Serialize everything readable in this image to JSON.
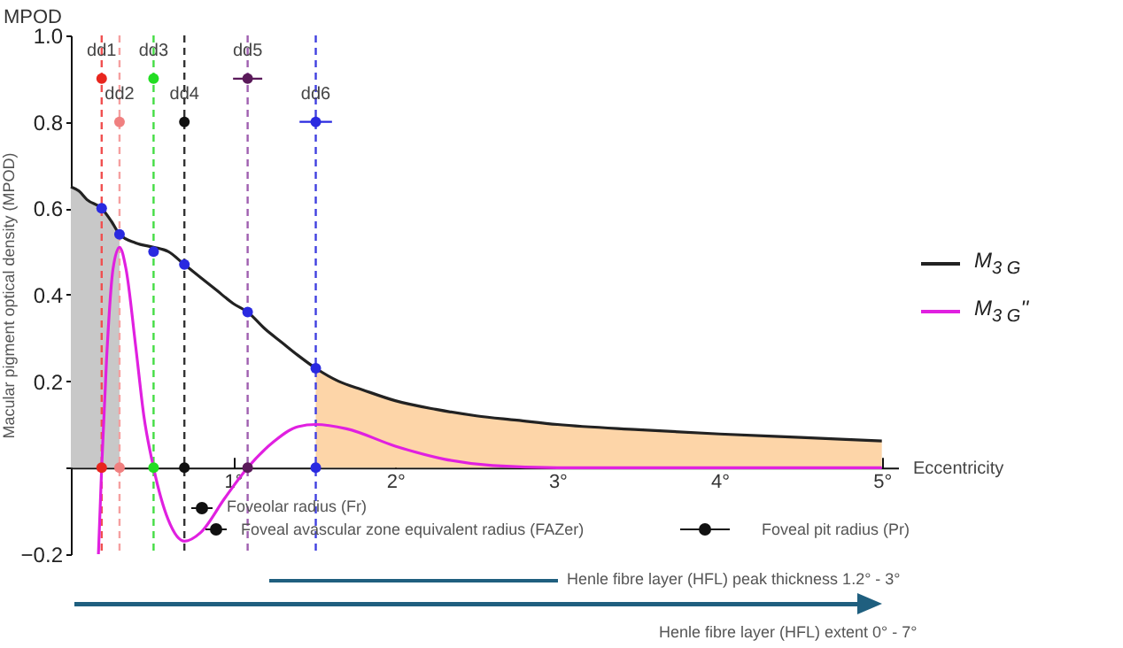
{
  "chart_data": {
    "type": "line",
    "xlabel": "Eccentricity",
    "ylabel": "Macular pigment optical density (MPOD)",
    "xlim": [
      0,
      5.1
    ],
    "ylim": [
      -0.2,
      1.0
    ],
    "xticks": [
      {
        "value": 1,
        "label": "1°"
      },
      {
        "value": 2,
        "label": "2°"
      },
      {
        "value": 3,
        "label": "3°"
      },
      {
        "value": 4,
        "label": "4°"
      },
      {
        "value": 5,
        "label": "5°"
      }
    ],
    "yticks": [
      {
        "value": -0.2,
        "label": "−0.2"
      },
      {
        "value": 0,
        "label": null
      },
      0.2,
      0.4,
      0.6,
      0.8,
      {
        "value": 1,
        "label": "1.0"
      }
    ],
    "grid": false,
    "legend": "right",
    "series": [
      {
        "type": "area",
        "color": "#c8c8c8",
        "x": [
          0,
          0.05,
          0.1,
          0.19,
          0.25,
          0.3
        ],
        "values": [
          0.65,
          0.64,
          0.62,
          0.6,
          0.57,
          0.54
        ]
      },
      {
        "type": "area",
        "color": "#fdd5a8",
        "x": [
          1.51,
          1.65,
          1.8,
          2.0,
          2.25,
          2.5,
          2.75,
          3.0,
          3.5,
          4.0,
          4.5,
          5.0
        ],
        "values": [
          0.23,
          0.2,
          0.18,
          0.155,
          0.135,
          0.12,
          0.11,
          0.1,
          0.088,
          0.078,
          0.07,
          0.062
        ]
      },
      {
        "name": "M$_{3 G}$",
        "color": "#222222",
        "x": [
          0,
          0.05,
          0.1,
          0.19,
          0.25,
          0.3,
          0.4,
          0.51,
          0.6,
          0.7,
          0.8,
          0.9,
          1.0,
          1.09,
          1.2,
          1.3,
          1.4,
          1.51,
          1.65,
          1.8,
          2.0,
          2.25,
          2.5,
          2.75,
          3.0,
          3.5,
          4.0,
          4.5,
          5.0
        ],
        "values": [
          0.65,
          0.64,
          0.62,
          0.6,
          0.57,
          0.54,
          0.52,
          0.51,
          0.5,
          0.47,
          0.44,
          0.41,
          0.38,
          0.36,
          0.32,
          0.29,
          0.26,
          0.23,
          0.2,
          0.18,
          0.155,
          0.135,
          0.12,
          0.11,
          0.1,
          0.088,
          0.078,
          0.07,
          0.062
        ]
      },
      {
        "name": "M$_{3 G}$''",
        "color": "#e020e0",
        "x": [
          0.17,
          0.19,
          0.22,
          0.26,
          0.3,
          0.34,
          0.4,
          0.45,
          0.51,
          0.6,
          0.7,
          0.8,
          0.95,
          1.09,
          1.25,
          1.4,
          1.51,
          1.7,
          2.0,
          2.3,
          2.6,
          3.0,
          4.0,
          5.0
        ],
        "values": [
          -0.2,
          0,
          0.25,
          0.46,
          0.51,
          0.46,
          0.28,
          0.12,
          0,
          -0.12,
          -0.17,
          -0.15,
          -0.07,
          0,
          0.06,
          0.095,
          0.1,
          0.09,
          0.05,
          0.02,
          0.005,
          0,
          0,
          0
        ]
      },
      {
        "type": "scatter",
        "x": [
          0.19,
          0.3,
          0.51,
          0.7,
          1.09,
          1.51
        ],
        "values": [
          0.6,
          0.54,
          0.5,
          0.47,
          0.36,
          0.23
        ],
        "color": "#2a2ae0",
        "marker": "circle"
      },
      {
        "type": "scatter",
        "x": [
          0.19,
          0.3,
          0.51,
          0.7,
          1.09,
          1.51
        ],
        "values": [
          0,
          0,
          0,
          0,
          0,
          0
        ],
        "colors": [
          "#e8261e",
          "#f08080",
          "#22dd22",
          "#111111",
          "#5a1a5a",
          "#2a2ae0"
        ],
        "marker": "circle"
      },
      {
        "type": "scatter",
        "x": [
          0.19,
          0.3,
          0.51,
          0.7,
          1.09,
          1.51
        ],
        "values": [
          0.9,
          0.8,
          0.9,
          0.8,
          0.9,
          0.8
        ],
        "colors": [
          "#e8261e",
          "#f08080",
          "#22dd22",
          "#111111",
          "#5a1a5a",
          "#2a2ae0"
        ],
        "xerrors": [
          null,
          null,
          null,
          null,
          0.09,
          0.1
        ],
        "marker": "circle"
      }
    ],
    "ref_lines": [
      {
        "axis": "x",
        "value": 0.19,
        "color": "#f05050",
        "line_style": "dashed"
      },
      {
        "axis": "x",
        "value": 0.3,
        "color": "#f5a0a0",
        "line_style": "dashed"
      },
      {
        "axis": "x",
        "value": 0.51,
        "color": "#44dd44",
        "line_style": "dashed"
      },
      {
        "axis": "x",
        "value": 0.7,
        "color": "#333333",
        "line_style": "dashed"
      },
      {
        "axis": "x",
        "value": 1.09,
        "color": "#a060b0",
        "line_style": "dashed"
      },
      {
        "axis": "x",
        "value": 1.51,
        "color": "#4040e0",
        "line_style": "dashed"
      }
    ],
    "annotations": [
      "MPOD",
      {
        "text": "dd1",
        "x": 0.19,
        "y": 0.9
      },
      {
        "text": "dd2",
        "x": 0.3,
        "y": 0.8
      },
      {
        "text": "dd3",
        "x": 0.51,
        "y": 0.9
      },
      {
        "text": "dd4",
        "x": 0.7,
        "y": 0.8
      },
      {
        "text": "dd5",
        "x": 1.09,
        "y": 0.9
      },
      {
        "text": "dd6",
        "x": 1.51,
        "y": 0.8
      },
      "Foveolar radius (Fr)",
      "Foveal avascular zone equivalent radius (FAZer)",
      "Foveal pit radius (Pr)",
      "Henle fibre layer (HFL) peak thickness 1.2° - 3°",
      "Henle fibre layer (HFL) extent 0° - 7°"
    ]
  }
}
